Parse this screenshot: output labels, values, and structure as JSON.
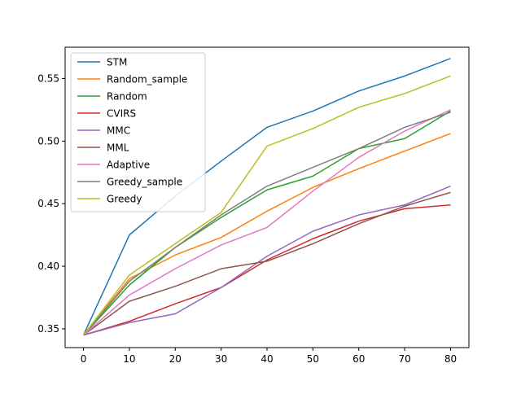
{
  "chart_data": {
    "type": "line",
    "title": "",
    "xlabel": "",
    "ylabel": "",
    "xlim": [
      -4,
      84
    ],
    "ylim": [
      0.335,
      0.575
    ],
    "xticks": [
      0,
      10,
      20,
      30,
      40,
      50,
      60,
      70,
      80
    ],
    "yticks": [
      0.35,
      0.4,
      0.45,
      0.5,
      0.55
    ],
    "ytick_labels": [
      "0.35",
      "0.40",
      "0.45",
      "0.50",
      "0.55"
    ],
    "legend_position": "top-left",
    "grid": false,
    "x": [
      0,
      10,
      20,
      30,
      40,
      50,
      60,
      70,
      80
    ],
    "series": [
      {
        "name": "STM",
        "color": "#1f77b4",
        "values": [
          0.345,
          0.425,
          0.456,
          0.484,
          0.511,
          0.524,
          0.54,
          0.552,
          0.566
        ]
      },
      {
        "name": "Random_sample",
        "color": "#ff7f0e",
        "values": [
          0.345,
          0.39,
          0.409,
          0.423,
          0.444,
          0.463,
          0.478,
          0.492,
          0.506
        ]
      },
      {
        "name": "Random",
        "color": "#2ca02c",
        "values": [
          0.345,
          0.385,
          0.415,
          0.439,
          0.461,
          0.472,
          0.494,
          0.502,
          0.524
        ]
      },
      {
        "name": "CVIRS",
        "color": "#d62728",
        "values": [
          0.345,
          0.356,
          0.37,
          0.383,
          0.405,
          0.422,
          0.436,
          0.446,
          0.449
        ]
      },
      {
        "name": "MMC",
        "color": "#9467bd",
        "values": [
          0.345,
          0.355,
          0.362,
          0.383,
          0.408,
          0.428,
          0.441,
          0.449,
          0.464
        ]
      },
      {
        "name": "MML",
        "color": "#8c564b",
        "values": [
          0.345,
          0.372,
          0.384,
          0.398,
          0.404,
          0.418,
          0.434,
          0.448,
          0.459
        ]
      },
      {
        "name": "Adaptive",
        "color": "#e377c2",
        "values": [
          0.345,
          0.377,
          0.398,
          0.417,
          0.431,
          0.46,
          0.487,
          0.508,
          0.525
        ]
      },
      {
        "name": "Greedy_sample",
        "color": "#7f7f7f",
        "values": [
          0.345,
          0.388,
          0.415,
          0.441,
          0.464,
          0.479,
          0.494,
          0.511,
          0.523
        ]
      },
      {
        "name": "Greedy",
        "color": "#bcbd22",
        "values": [
          0.345,
          0.393,
          0.418,
          0.443,
          0.496,
          0.51,
          0.527,
          0.538,
          0.552
        ]
      }
    ]
  }
}
